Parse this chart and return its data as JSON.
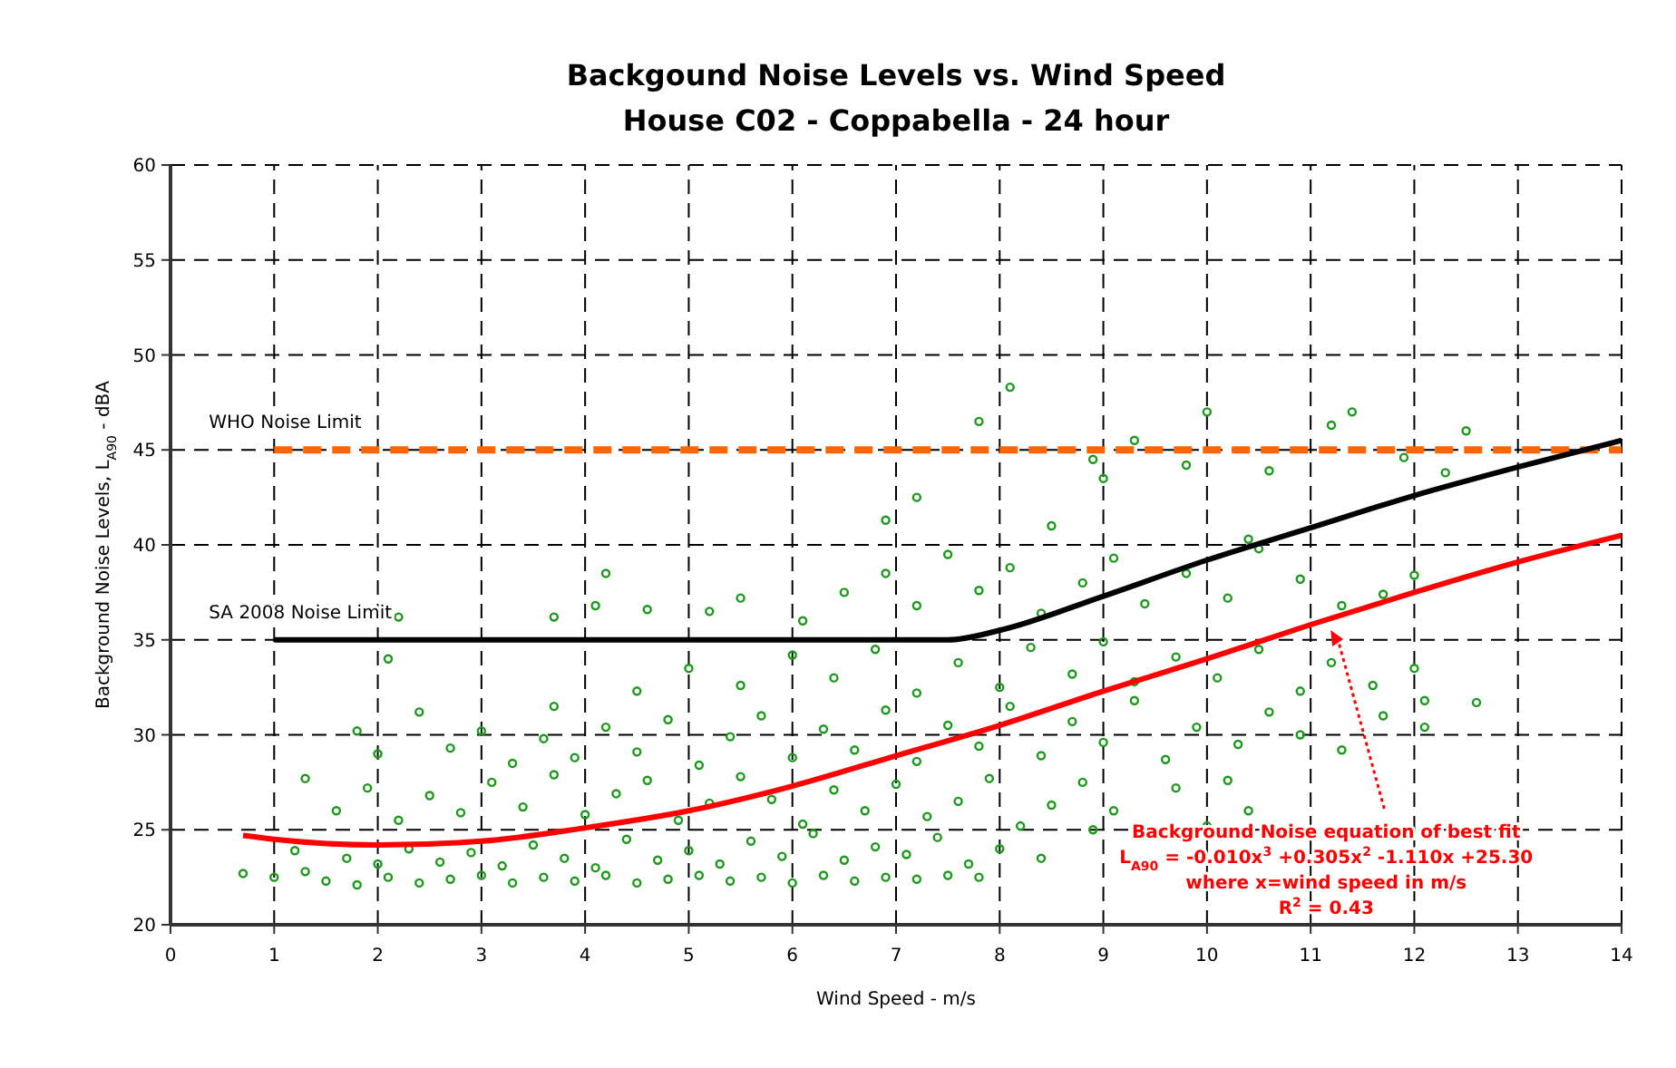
{
  "chart_data": {
    "type": "scatter",
    "title": "Backgound Noise Levels vs. Wind Speed",
    "subtitle": "House C02 - Coppabella - 24 hour",
    "xlabel": "Wind Speed - m/s",
    "ylabel": "Background Noise Levels, L$_{A90}$ - dBA",
    "xlim": [
      0,
      14
    ],
    "xticks": [
      0,
      1,
      2,
      3,
      4,
      5,
      6,
      7,
      8,
      9,
      10,
      11,
      12,
      13,
      14
    ],
    "ylim": [
      20,
      60
    ],
    "yticks": [
      20,
      25,
      30,
      35,
      40,
      45,
      50,
      55,
      60
    ],
    "grid": true,
    "series": [
      {
        "color": "#1a991a",
        "marker": "circle",
        "x": [
          1.5,
          1.8,
          2.1,
          2.4,
          2.7,
          3.0,
          3.3,
          3.6,
          3.9,
          4.2,
          4.5,
          4.8,
          5.1,
          5.4,
          5.7,
          6.0,
          6.3,
          6.6,
          6.9,
          7.2,
          7.5,
          7.8,
          0.7,
          1.0,
          1.3,
          1.2,
          1.7,
          2.0,
          2.3,
          2.6,
          2.9,
          3.2,
          3.5,
          3.8,
          4.1,
          4.4,
          4.7,
          5.0,
          5.3,
          5.6,
          5.9,
          6.2,
          6.5,
          6.8,
          7.1,
          7.4,
          7.7,
          8.0,
          8.4,
          1.3,
          1.6,
          1.9,
          2.2,
          2.5,
          2.8,
          3.1,
          3.4,
          3.7,
          4.0,
          4.3,
          4.6,
          4.9,
          5.2,
          5.5,
          5.8,
          6.1,
          6.4,
          6.7,
          7.0,
          7.3,
          7.6,
          7.9,
          8.2,
          8.5,
          8.8,
          9.1,
          8.9,
          9.7,
          10.0,
          10.4,
          10.2,
          1.8,
          2.0,
          2.4,
          2.7,
          3.0,
          3.3,
          3.6,
          3.9,
          4.2,
          4.5,
          4.8,
          5.1,
          5.4,
          5.7,
          6.0,
          6.3,
          6.6,
          6.9,
          7.2,
          7.5,
          7.8,
          8.1,
          8.4,
          8.7,
          9.0,
          9.3,
          9.6,
          9.9,
          10.3,
          10.6,
          10.9,
          11.3,
          11.7,
          12.1,
          12.6,
          12.1,
          2.1,
          3.7,
          4.5,
          5.0,
          5.5,
          6.0,
          6.4,
          6.8,
          7.2,
          7.6,
          8.0,
          8.3,
          8.7,
          9.0,
          9.3,
          9.7,
          10.1,
          10.5,
          10.9,
          11.2,
          11.6,
          12.0,
          2.2,
          3.7,
          4.1,
          4.6,
          5.2,
          5.5,
          6.1,
          6.5,
          6.9,
          7.2,
          7.5,
          7.8,
          8.1,
          8.4,
          8.8,
          9.1,
          9.4,
          9.8,
          10.2,
          10.5,
          10.9,
          11.3,
          11.7,
          12.0,
          4.2,
          6.9,
          7.2,
          7.8,
          8.1,
          8.9,
          9.0,
          9.3,
          9.8,
          10.0,
          10.6,
          11.2,
          11.4,
          11.9,
          12.5,
          12.3,
          10.4,
          8.5
        ],
        "values": [
          22.3,
          22.1,
          22.5,
          22.2,
          22.4,
          22.6,
          22.2,
          22.5,
          22.3,
          22.6,
          22.2,
          22.4,
          22.6,
          22.3,
          22.5,
          22.2,
          22.6,
          22.3,
          22.5,
          22.4,
          22.6,
          22.5,
          22.7,
          22.5,
          22.8,
          23.9,
          23.5,
          23.2,
          24.0,
          23.3,
          23.8,
          23.1,
          24.2,
          23.5,
          23.0,
          24.5,
          23.4,
          23.9,
          23.2,
          24.4,
          23.6,
          24.8,
          23.4,
          24.1,
          23.7,
          24.6,
          23.2,
          24.0,
          23.5,
          27.7,
          26.0,
          27.2,
          25.5,
          26.8,
          25.9,
          27.5,
          26.2,
          27.9,
          25.8,
          26.9,
          27.6,
          25.5,
          26.4,
          27.8,
          26.6,
          25.3,
          27.1,
          26.0,
          27.4,
          25.7,
          26.5,
          27.7,
          25.2,
          26.3,
          27.5,
          26.0,
          25.0,
          27.2,
          25.2,
          26.0,
          27.6,
          30.2,
          29.0,
          31.2,
          29.3,
          30.2,
          28.5,
          29.8,
          28.8,
          30.4,
          29.1,
          30.8,
          28.4,
          29.9,
          31.0,
          28.8,
          30.3,
          29.2,
          31.3,
          28.6,
          30.5,
          29.4,
          31.5,
          28.9,
          30.7,
          29.6,
          31.8,
          28.7,
          30.4,
          29.5,
          31.2,
          30.0,
          29.2,
          31.0,
          30.4,
          31.7,
          31.8,
          34.0,
          31.5,
          32.3,
          33.5,
          32.6,
          34.2,
          33.0,
          34.5,
          32.2,
          33.8,
          32.5,
          34.6,
          33.2,
          34.9,
          32.8,
          34.1,
          33.0,
          34.5,
          32.3,
          33.8,
          32.6,
          33.5,
          36.2,
          36.2,
          36.8,
          36.6,
          36.5,
          37.2,
          36.0,
          37.5,
          38.5,
          36.8,
          39.5,
          37.6,
          38.8,
          36.4,
          38.0,
          39.3,
          36.9,
          38.5,
          37.2,
          39.8,
          38.2,
          36.8,
          37.4,
          38.4,
          38.5,
          41.3,
          42.5,
          46.5,
          48.3,
          44.5,
          43.5,
          45.5,
          44.2,
          47.0,
          43.9,
          46.3,
          47.0,
          44.6,
          46.0,
          43.8,
          40.3,
          41.0
        ]
      },
      {
        "type": "line",
        "name": "WHO Noise Limit",
        "color": "#ff6600",
        "line_style": "dashed",
        "x": [
          1,
          14
        ],
        "values": [
          45,
          45
        ]
      },
      {
        "type": "line",
        "name": "SA 2008 Noise Limit",
        "color": "#000000",
        "line_style": "solid",
        "x": [
          1,
          2,
          4,
          6,
          7,
          7.5,
          8,
          9,
          10,
          11,
          12,
          13,
          14
        ],
        "values": [
          35,
          35,
          35,
          35,
          35,
          35,
          35.5,
          37.3,
          39.2,
          40.9,
          42.6,
          44.1,
          45.5
        ]
      },
      {
        "type": "line",
        "color": "#ff0000",
        "line_style": "solid",
        "x": [
          0.7,
          1,
          2,
          3,
          4,
          5,
          6,
          7,
          8,
          9,
          10,
          11,
          12,
          13,
          14
        ],
        "values": [
          24.7,
          24.5,
          24.2,
          24.4,
          25.1,
          26.0,
          27.3,
          28.9,
          30.5,
          32.3,
          34.0,
          35.8,
          37.5,
          39.1,
          40.5
        ]
      }
    ],
    "annotations": [
      "Background Noise equation of best fit",
      "L$_{A90}$ = -0.010x$^{3}$ +0.305x$^{2}$ -1.110x +25.30",
      "where x=wind speed in m/s",
      "R$^{2}$ = 0.43"
    ]
  }
}
